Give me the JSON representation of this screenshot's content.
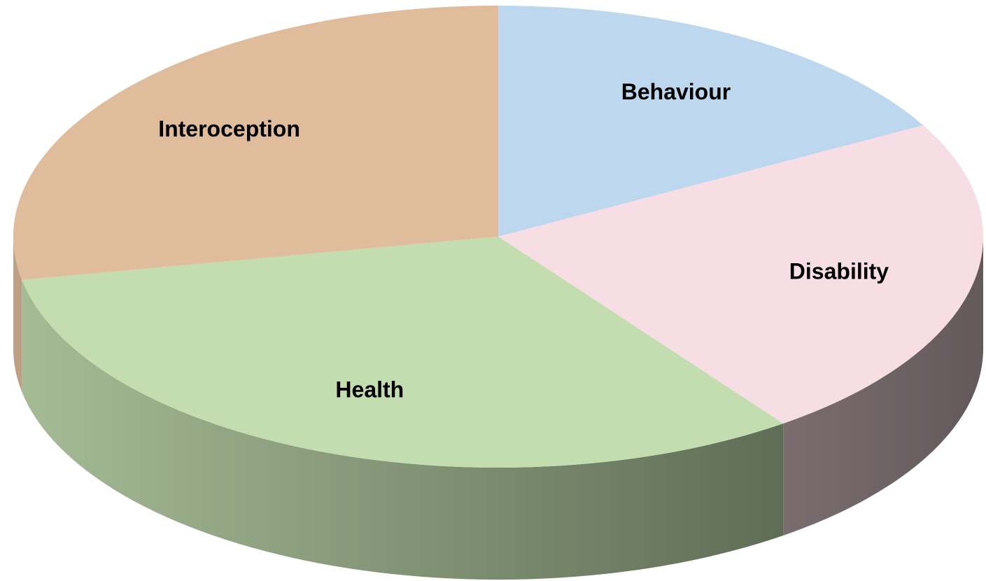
{
  "chart_data": {
    "type": "pie",
    "three_d": true,
    "categories": [
      "Behaviour",
      "Disability",
      "Health",
      "Interoception"
    ],
    "values": [
      17,
      23,
      32,
      28
    ],
    "colors": [
      "#bdd7ee",
      "#f7dee4",
      "#c3ddb0",
      "#dfbd9c"
    ]
  }
}
